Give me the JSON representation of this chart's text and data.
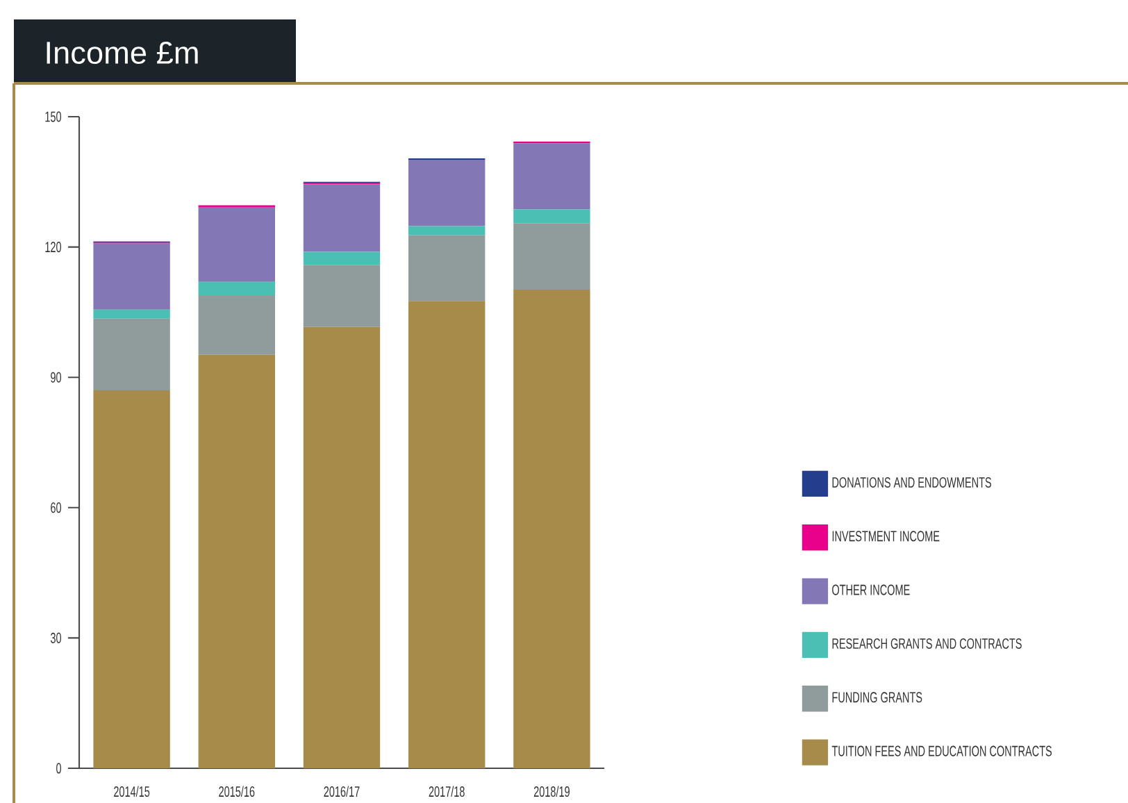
{
  "chart_data": {
    "type": "bar",
    "title": "Income £m",
    "stacked": true,
    "legend": "right",
    "categories": [
      "2014/15",
      "2015/16",
      "2016/17",
      "2017/18",
      "2018/19"
    ],
    "series": [
      {
        "name": "TUITION FEES AND EDUCATION CONTRACTS",
        "color": "#a68b4a",
        "values": [
          87.0,
          95.2,
          101.6,
          107.6,
          110.2
        ]
      },
      {
        "name": "FUNDING GRANTS",
        "color": "#8f9c9b",
        "values": [
          16.5,
          13.7,
          14.3,
          15.1,
          15.3
        ]
      },
      {
        "name": "RESEARCH GRANTS AND CONTRACTS",
        "color": "#4cbfb4",
        "values": [
          2.2,
          3.2,
          3.0,
          2.1,
          3.2
        ]
      },
      {
        "name": "OTHER INCOME",
        "color": "#8377b5",
        "values": [
          15.1,
          17.0,
          15.5,
          15.3,
          15.2
        ]
      },
      {
        "name": "INVESTMENT INCOME",
        "color": "#e9008b",
        "values": [
          0.3,
          0.5,
          0.3,
          0.0,
          0.4
        ]
      },
      {
        "name": "DONATIONS AND ENDOWMENTS",
        "color": "#243d8d",
        "values": [
          0.2,
          0.0,
          0.3,
          0.3,
          0.0
        ]
      }
    ],
    "ylim": [
      0,
      150
    ],
    "yticks": [
      0,
      30,
      60,
      90,
      120,
      150
    ]
  }
}
